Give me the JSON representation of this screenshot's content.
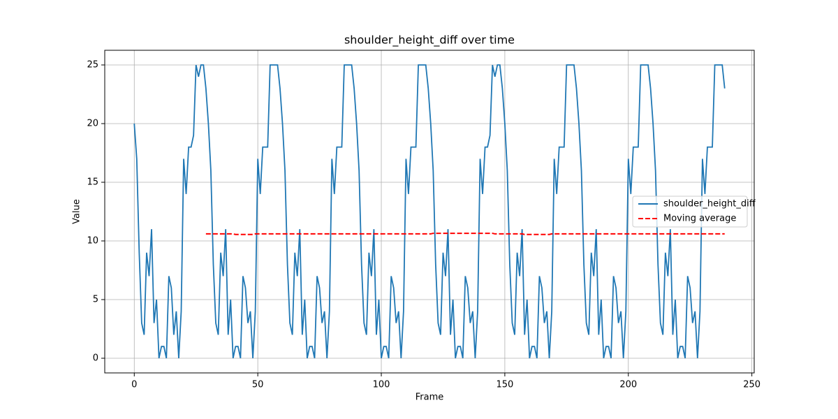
{
  "chart_data": {
    "type": "line",
    "title": "shoulder_height_diff over time",
    "x_label": "Frame",
    "y_label": "Value",
    "x": [
      0,
      1,
      2,
      3,
      4,
      5,
      6,
      7,
      8,
      9,
      10,
      11,
      12,
      13,
      14,
      15,
      16,
      17,
      18,
      19,
      20,
      21,
      22,
      23,
      24,
      25,
      26,
      27,
      28,
      29,
      30,
      31,
      32,
      33,
      34,
      35,
      36,
      37,
      38,
      39,
      40,
      41,
      42,
      43,
      44,
      45,
      46,
      47,
      48,
      49,
      50,
      51,
      52,
      53,
      54,
      55,
      56,
      57,
      58,
      59,
      60,
      61,
      62,
      63,
      64,
      65,
      66,
      67,
      68,
      69,
      70,
      71,
      72,
      73,
      74,
      75,
      76,
      77,
      78,
      79,
      80,
      81,
      82,
      83,
      84,
      85,
      86,
      87,
      88,
      89,
      90,
      91,
      92,
      93,
      94,
      95,
      96,
      97,
      98,
      99,
      100,
      101,
      102,
      103,
      104,
      105,
      106,
      107,
      108,
      109,
      110,
      111,
      112,
      113,
      114,
      115,
      116,
      117,
      118,
      119,
      120,
      121,
      122,
      123,
      124,
      125,
      126,
      127,
      128,
      129,
      130,
      131,
      132,
      133,
      134,
      135,
      136,
      137,
      138,
      139,
      140,
      141,
      142,
      143,
      144,
      145,
      146,
      147,
      148,
      149,
      150,
      151,
      152,
      153,
      154,
      155,
      156,
      157,
      158,
      159,
      160,
      161,
      162,
      163,
      164,
      165,
      166,
      167,
      168,
      169,
      170,
      171,
      172,
      173,
      174,
      175,
      176,
      177,
      178,
      179,
      180,
      181,
      182,
      183,
      184,
      185,
      186,
      187,
      188,
      189,
      190,
      191,
      192,
      193,
      194,
      195,
      196,
      197,
      198,
      199,
      200,
      201,
      202,
      203,
      204,
      205,
      206,
      207,
      208,
      209,
      210,
      211,
      212,
      213,
      214,
      215,
      216,
      217,
      218,
      219,
      220,
      221,
      222,
      223,
      224,
      225,
      226,
      227,
      228,
      229,
      230,
      231,
      232,
      233,
      234,
      235,
      236,
      237,
      238,
      239
    ],
    "series": [
      {
        "name": "shoulder_height_diff",
        "color": "#1f77b4",
        "style": "solid",
        "values": [
          20,
          17,
          9,
          3,
          2,
          9,
          7,
          11,
          3,
          5,
          0,
          1,
          1,
          0,
          7,
          6,
          2,
          4,
          0,
          4,
          17,
          14,
          18,
          18,
          19,
          25,
          24,
          25,
          25,
          23,
          20,
          16,
          8,
          3,
          2,
          9,
          7,
          11,
          2,
          5,
          0,
          1,
          1,
          0,
          7,
          6,
          3,
          4,
          0,
          4,
          17,
          14,
          18,
          18,
          18,
          25,
          25,
          25,
          25,
          23,
          20,
          16,
          8,
          3,
          2,
          9,
          7,
          11,
          2,
          5,
          0,
          1,
          1,
          0,
          7,
          6,
          3,
          4,
          0,
          4,
          17,
          14,
          18,
          18,
          18,
          25,
          25,
          25,
          25,
          23,
          20,
          16,
          8,
          3,
          2,
          9,
          7,
          11,
          2,
          5,
          0,
          1,
          1,
          0,
          7,
          6,
          3,
          4,
          0,
          4,
          17,
          14,
          18,
          18,
          18,
          25,
          25,
          25,
          25,
          23,
          20,
          16,
          8,
          3,
          2,
          9,
          7,
          11,
          2,
          5,
          0,
          1,
          1,
          0,
          7,
          6,
          3,
          4,
          0,
          4,
          17,
          14,
          18,
          18,
          19,
          25,
          24,
          25,
          25,
          23,
          20,
          16,
          8,
          3,
          2,
          9,
          7,
          11,
          2,
          5,
          0,
          1,
          1,
          0,
          7,
          6,
          3,
          4,
          0,
          4,
          17,
          14,
          18,
          18,
          18,
          25,
          25,
          25,
          25,
          23,
          20,
          16,
          8,
          3,
          2,
          9,
          7,
          11,
          2,
          5,
          0,
          1,
          1,
          0,
          7,
          6,
          3,
          4,
          0,
          4,
          17,
          14,
          18,
          18,
          18,
          25,
          25,
          25,
          25,
          23,
          20,
          16,
          8,
          3,
          2,
          9,
          7,
          11,
          2,
          5,
          0,
          1,
          1,
          0,
          7,
          6,
          3,
          4,
          0,
          4,
          17,
          14,
          18,
          18,
          18,
          25,
          25,
          25,
          25,
          23
        ]
      },
      {
        "name": "Moving average",
        "color": "#ff0000",
        "style": "dashed",
        "values": [
          null,
          null,
          null,
          null,
          null,
          null,
          null,
          null,
          null,
          null,
          null,
          null,
          null,
          null,
          null,
          null,
          null,
          null,
          null,
          null,
          null,
          null,
          null,
          null,
          null,
          null,
          null,
          null,
          null,
          10.6,
          10.6,
          10.6,
          10.6,
          10.6,
          10.6,
          10.6,
          10.6,
          10.6,
          10.6,
          10.6,
          10.6,
          10.55,
          10.55,
          10.55,
          10.55,
          10.55,
          10.55,
          10.55,
          10.55,
          10.6,
          10.6,
          10.6,
          10.6,
          10.6,
          10.6,
          10.6,
          10.6,
          10.6,
          10.6,
          10.6,
          10.6,
          10.6,
          10.6,
          10.6,
          10.6,
          10.6,
          10.6,
          10.6,
          10.6,
          10.6,
          10.6,
          10.6,
          10.6,
          10.6,
          10.6,
          10.6,
          10.6,
          10.6,
          10.6,
          10.6,
          10.6,
          10.6,
          10.6,
          10.6,
          10.6,
          10.6,
          10.6,
          10.6,
          10.6,
          10.6,
          10.6,
          10.6,
          10.6,
          10.6,
          10.6,
          10.6,
          10.6,
          10.6,
          10.6,
          10.6,
          10.6,
          10.6,
          10.6,
          10.6,
          10.6,
          10.6,
          10.6,
          10.6,
          10.6,
          10.6,
          10.6,
          10.6,
          10.6,
          10.6,
          10.6,
          10.6,
          10.6,
          10.6,
          10.6,
          10.6,
          10.6,
          10.65,
          10.65,
          10.65,
          10.65,
          10.65,
          10.65,
          10.65,
          10.65,
          10.65,
          10.65,
          10.65,
          10.65,
          10.65,
          10.65,
          10.65,
          10.65,
          10.65,
          10.65,
          10.65,
          10.65,
          10.65,
          10.65,
          10.65,
          10.65,
          10.65,
          10.6,
          10.6,
          10.6,
          10.6,
          10.6,
          10.6,
          10.6,
          10.6,
          10.6,
          10.6,
          10.6,
          10.6,
          10.55,
          10.55,
          10.55,
          10.55,
          10.55,
          10.55,
          10.55,
          10.55,
          10.55,
          10.55,
          10.55,
          10.6,
          10.6,
          10.6,
          10.6,
          10.6,
          10.6,
          10.6,
          10.6,
          10.6,
          10.6,
          10.6,
          10.6,
          10.6,
          10.6,
          10.6,
          10.6,
          10.6,
          10.6,
          10.6,
          10.6,
          10.6,
          10.6,
          10.6,
          10.6,
          10.6,
          10.6,
          10.6,
          10.6,
          10.6,
          10.6,
          10.6,
          10.6,
          10.6,
          10.6,
          10.6,
          10.6,
          10.6,
          10.6,
          10.6,
          10.6,
          10.6,
          10.6,
          10.6,
          10.6,
          10.6,
          10.6,
          10.6,
          10.6,
          10.6,
          10.6,
          10.6,
          10.6,
          10.6,
          10.6,
          10.6,
          10.6,
          10.6,
          10.6,
          10.6,
          10.6,
          10.6,
          10.6,
          10.6,
          10.6,
          10.6,
          10.6,
          10.6,
          10.6,
          10.6,
          10.6,
          10.6
        ]
      }
    ],
    "xlim": [
      -11.95,
      250.95
    ],
    "xticks": [
      0,
      50,
      100,
      150,
      200,
      250
    ],
    "ylim": [
      -1.25,
      26.25
    ],
    "yticks": [
      0,
      5,
      10,
      15,
      20,
      25
    ],
    "grid": true,
    "legend": "center right"
  }
}
